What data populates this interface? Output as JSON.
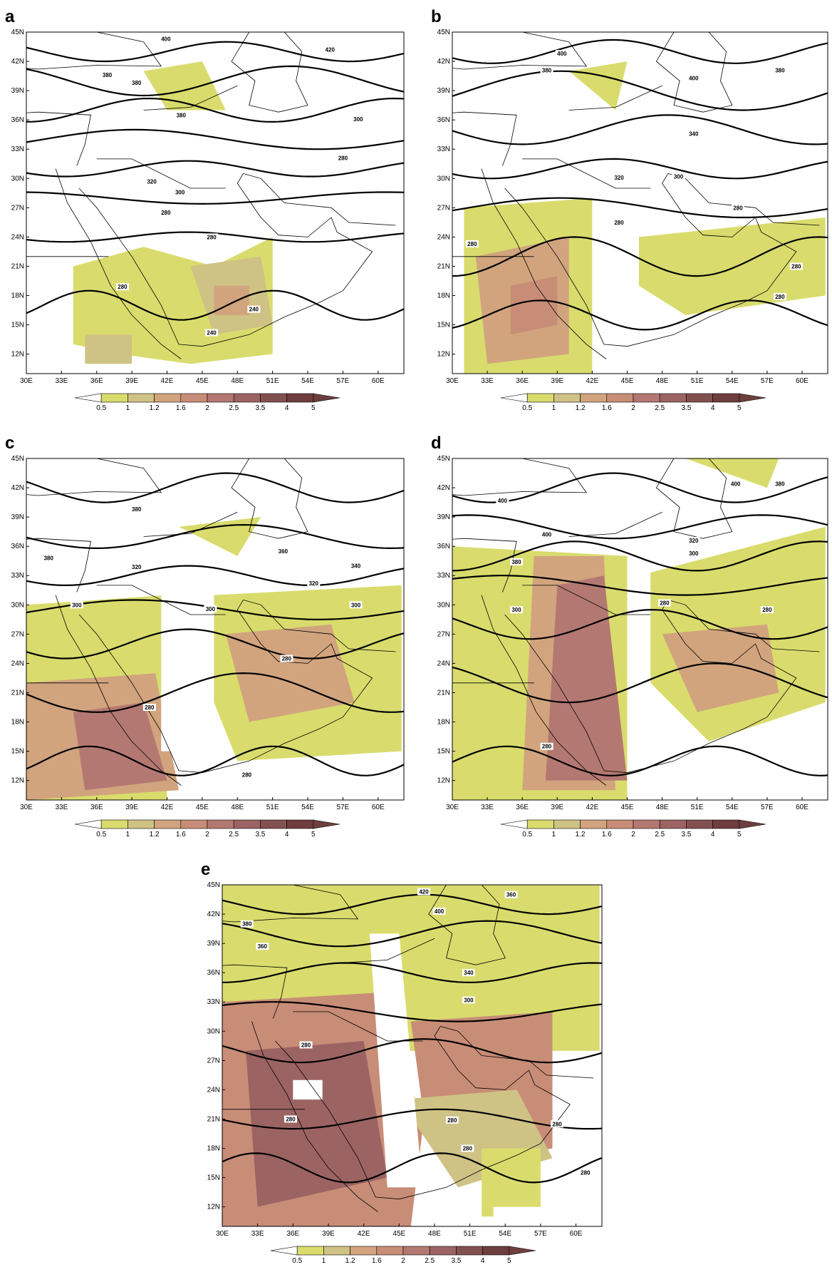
{
  "panels": [
    {
      "label": "a",
      "contour_labels": [
        "400",
        "420",
        "380",
        "380",
        "380",
        "300",
        "320",
        "300",
        "280",
        "280",
        "280",
        "240",
        "240",
        "280"
      ]
    },
    {
      "label": "b",
      "contour_labels": [
        "400",
        "380",
        "400",
        "380",
        "340",
        "300",
        "320",
        "280",
        "280",
        "280",
        "280",
        "280"
      ]
    },
    {
      "label": "c",
      "contour_labels": [
        "380",
        "380",
        "360",
        "340",
        "320",
        "320",
        "300",
        "300",
        "300",
        "280",
        "280",
        "280"
      ]
    },
    {
      "label": "d",
      "contour_labels": [
        "400",
        "380",
        "400",
        "400",
        "320",
        "300",
        "380",
        "300",
        "280",
        "280",
        "280"
      ]
    },
    {
      "label": "e",
      "contour_labels": [
        "420",
        "400",
        "360",
        "380",
        "360",
        "340",
        "300",
        "280",
        "280",
        "280",
        "280",
        "280",
        "280"
      ]
    }
  ],
  "lat_ticks": [
    "45N",
    "42N",
    "39N",
    "36N",
    "33N",
    "30N",
    "27N",
    "24N",
    "21N",
    "18N",
    "15N",
    "12N"
  ],
  "lon_ticks": [
    "30E",
    "33E",
    "36E",
    "39E",
    "42E",
    "45E",
    "48E",
    "51E",
    "54E",
    "57E",
    "60E"
  ],
  "colorbar": [
    "0.5",
    "1",
    "1.2",
    "1.6",
    "2",
    "2.5",
    "3.5",
    "4",
    "5"
  ]
}
